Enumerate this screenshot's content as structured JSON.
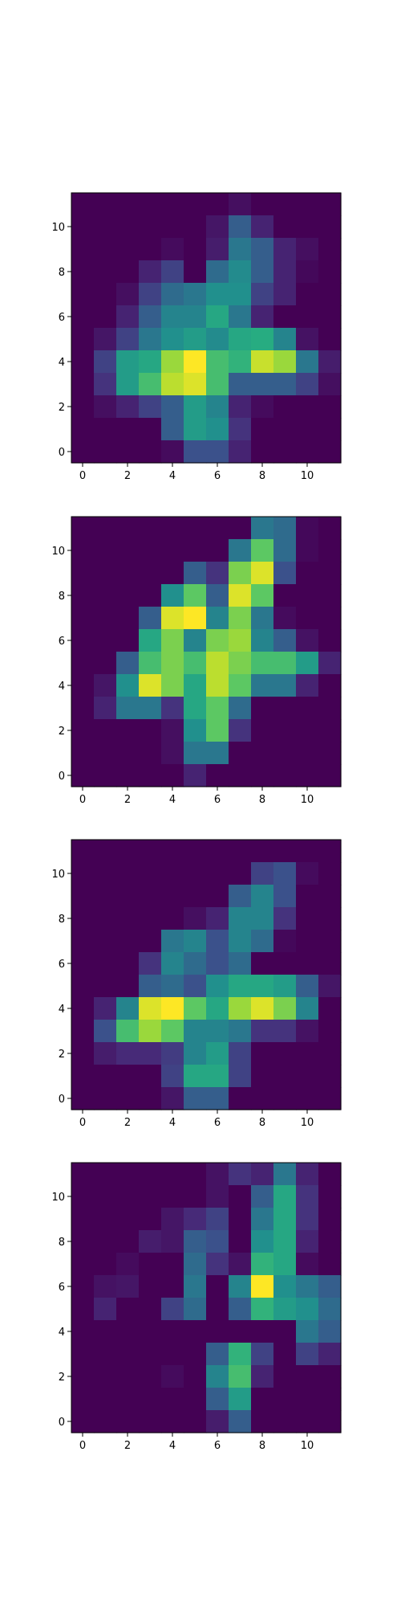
{
  "chart_data": [
    {
      "type": "heatmap",
      "colormap": "viridis",
      "vmin": 0,
      "vmax": 1,
      "grid": false,
      "xticks": [
        0,
        2,
        4,
        6,
        8,
        10
      ],
      "yticks": [
        0,
        2,
        4,
        6,
        8,
        10
      ],
      "xticklabels": [
        "0",
        "2",
        "4",
        "6",
        "8",
        "10"
      ],
      "yticklabels": [
        "0",
        "2",
        "4",
        "6",
        "8",
        "10"
      ],
      "xlim": [
        -0.5,
        11.5
      ],
      "ylim": [
        11.5,
        -0.5
      ],
      "values": [
        [
          0,
          0,
          0,
          0,
          0,
          0,
          0,
          0.04,
          0,
          0,
          0,
          0
        ],
        [
          0,
          0,
          0,
          0,
          0,
          0,
          0.06,
          0.3,
          0.1,
          0,
          0,
          0
        ],
        [
          0,
          0,
          0,
          0,
          0.03,
          0,
          0.08,
          0.4,
          0.3,
          0.1,
          0.04,
          0
        ],
        [
          0,
          0,
          0,
          0.1,
          0.2,
          0,
          0.35,
          0.48,
          0.3,
          0.1,
          0.02,
          0
        ],
        [
          0,
          0,
          0.04,
          0.2,
          0.35,
          0.4,
          0.5,
          0.5,
          0.2,
          0.1,
          0,
          0
        ],
        [
          0,
          0,
          0.1,
          0.3,
          0.45,
          0.45,
          0.6,
          0.4,
          0.1,
          0,
          0,
          0
        ],
        [
          0,
          0.06,
          0.2,
          0.4,
          0.5,
          0.55,
          0.48,
          0.6,
          0.62,
          0.45,
          0.05,
          0
        ],
        [
          0,
          0.2,
          0.55,
          0.6,
          0.85,
          1.0,
          0.7,
          0.65,
          0.92,
          0.85,
          0.4,
          0.08
        ],
        [
          0,
          0.15,
          0.55,
          0.7,
          0.9,
          0.95,
          0.7,
          0.3,
          0.3,
          0.3,
          0.2,
          0.04
        ],
        [
          0,
          0.04,
          0.1,
          0.2,
          0.3,
          0.55,
          0.45,
          0.1,
          0.03,
          0,
          0,
          0
        ],
        [
          0,
          0,
          0,
          0,
          0.3,
          0.55,
          0.5,
          0.15,
          0,
          0,
          0,
          0
        ],
        [
          0,
          0,
          0,
          0,
          0.03,
          0.25,
          0.25,
          0.1,
          0,
          0,
          0,
          0
        ]
      ]
    },
    {
      "type": "heatmap",
      "colormap": "viridis",
      "vmin": 0,
      "vmax": 1,
      "grid": false,
      "xticks": [
        0,
        2,
        4,
        6,
        8,
        10
      ],
      "yticks": [
        0,
        2,
        4,
        6,
        8,
        10
      ],
      "xticklabels": [
        "0",
        "2",
        "4",
        "6",
        "8",
        "10"
      ],
      "yticklabels": [
        "0",
        "2",
        "4",
        "6",
        "8",
        "10"
      ],
      "xlim": [
        -0.5,
        11.5
      ],
      "ylim": [
        11.5,
        -0.5
      ],
      "values": [
        [
          0,
          0,
          0,
          0,
          0,
          0,
          0,
          0,
          0.4,
          0.35,
          0.02,
          0
        ],
        [
          0,
          0,
          0,
          0,
          0,
          0,
          0,
          0.4,
          0.75,
          0.35,
          0.02,
          0
        ],
        [
          0,
          0,
          0,
          0,
          0,
          0.3,
          0.15,
          0.8,
          0.95,
          0.25,
          0,
          0
        ],
        [
          0,
          0,
          0,
          0,
          0.5,
          0.75,
          0.3,
          0.95,
          0.75,
          0,
          0,
          0
        ],
        [
          0,
          0,
          0,
          0.3,
          0.95,
          1.0,
          0.45,
          0.8,
          0.4,
          0.03,
          0,
          0
        ],
        [
          0,
          0,
          0,
          0.6,
          0.8,
          0.45,
          0.8,
          0.85,
          0.45,
          0.3,
          0.05,
          0
        ],
        [
          0,
          0,
          0.3,
          0.7,
          0.8,
          0.7,
          0.9,
          0.8,
          0.7,
          0.7,
          0.55,
          0.1
        ],
        [
          0,
          0.06,
          0.5,
          0.95,
          0.8,
          0.6,
          0.9,
          0.75,
          0.4,
          0.4,
          0.1,
          0
        ],
        [
          0,
          0.1,
          0.4,
          0.4,
          0.15,
          0.6,
          0.75,
          0.35,
          0,
          0,
          0,
          0
        ],
        [
          0,
          0,
          0,
          0,
          0.04,
          0.5,
          0.75,
          0.15,
          0,
          0,
          0,
          0
        ],
        [
          0,
          0,
          0,
          0,
          0.04,
          0.4,
          0.4,
          0,
          0,
          0,
          0,
          0
        ],
        [
          0,
          0,
          0,
          0,
          0,
          0.1,
          0,
          0,
          0,
          0,
          0,
          0
        ]
      ]
    },
    {
      "type": "heatmap",
      "colormap": "viridis",
      "vmin": 0,
      "vmax": 1,
      "grid": false,
      "xticks": [
        0,
        2,
        4,
        6,
        8,
        10
      ],
      "yticks": [
        0,
        2,
        4,
        6,
        8,
        10
      ],
      "xticklabels": [
        "0",
        "2",
        "4",
        "6",
        "8",
        "10"
      ],
      "yticklabels": [
        "0",
        "2",
        "4",
        "6",
        "8",
        "10"
      ],
      "xlim": [
        -0.5,
        11.5
      ],
      "ylim": [
        11.5,
        -0.5
      ],
      "values": [
        [
          0,
          0,
          0,
          0,
          0,
          0,
          0,
          0,
          0,
          0,
          0,
          0
        ],
        [
          0,
          0,
          0,
          0,
          0,
          0,
          0,
          0,
          0.2,
          0.25,
          0.03,
          0
        ],
        [
          0,
          0,
          0,
          0,
          0,
          0,
          0,
          0.3,
          0.45,
          0.25,
          0,
          0
        ],
        [
          0,
          0,
          0,
          0,
          0,
          0.04,
          0.1,
          0.45,
          0.45,
          0.15,
          0,
          0
        ],
        [
          0,
          0,
          0,
          0,
          0.4,
          0.45,
          0.25,
          0.45,
          0.35,
          0.02,
          0,
          0
        ],
        [
          0,
          0,
          0,
          0.15,
          0.45,
          0.35,
          0.25,
          0.35,
          0,
          0,
          0,
          0
        ],
        [
          0,
          0,
          0,
          0.3,
          0.35,
          0.25,
          0.5,
          0.6,
          0.6,
          0.55,
          0.3,
          0.06
        ],
        [
          0,
          0.1,
          0.45,
          0.95,
          1.0,
          0.75,
          0.6,
          0.85,
          0.95,
          0.8,
          0.45,
          0
        ],
        [
          0,
          0.25,
          0.7,
          0.85,
          0.75,
          0.45,
          0.45,
          0.4,
          0.15,
          0.15,
          0.05,
          0
        ],
        [
          0,
          0.08,
          0.12,
          0.12,
          0.18,
          0.45,
          0.55,
          0.2,
          0,
          0,
          0,
          0
        ],
        [
          0,
          0,
          0,
          0,
          0.2,
          0.6,
          0.6,
          0.2,
          0,
          0,
          0,
          0
        ],
        [
          0,
          0,
          0,
          0,
          0.06,
          0.3,
          0.3,
          0,
          0,
          0,
          0,
          0
        ]
      ]
    },
    {
      "type": "heatmap",
      "colormap": "viridis",
      "vmin": 0,
      "vmax": 1,
      "grid": false,
      "xticks": [
        0,
        2,
        4,
        6,
        8,
        10
      ],
      "yticks": [
        0,
        2,
        4,
        6,
        8,
        10
      ],
      "xticklabels": [
        "0",
        "2",
        "4",
        "6",
        "8",
        "10"
      ],
      "yticklabels": [
        "0",
        "2",
        "4",
        "6",
        "8",
        "10"
      ],
      "xlim": [
        -0.5,
        11.5
      ],
      "ylim": [
        11.5,
        -0.5
      ],
      "values": [
        [
          0,
          0,
          0,
          0,
          0,
          0,
          0.05,
          0.15,
          0.1,
          0.4,
          0.1,
          0
        ],
        [
          0,
          0,
          0,
          0,
          0,
          0,
          0.05,
          0,
          0.3,
          0.6,
          0.15,
          0
        ],
        [
          0,
          0,
          0,
          0,
          0.06,
          0.12,
          0.2,
          0,
          0.4,
          0.6,
          0.15,
          0
        ],
        [
          0,
          0,
          0,
          0.08,
          0.06,
          0.3,
          0.25,
          0,
          0.5,
          0.6,
          0.1,
          0
        ],
        [
          0,
          0,
          0.03,
          0,
          0,
          0.35,
          0.15,
          0.05,
          0.65,
          0.6,
          0.03,
          0
        ],
        [
          0,
          0.05,
          0.06,
          0,
          0,
          0.4,
          0,
          0.45,
          1.0,
          0.5,
          0.4,
          0.3
        ],
        [
          0,
          0.1,
          0,
          0,
          0.2,
          0.35,
          0,
          0.3,
          0.65,
          0.55,
          0.5,
          0.35
        ],
        [
          0,
          0,
          0,
          0,
          0,
          0,
          0,
          0,
          0,
          0,
          0.4,
          0.3
        ],
        [
          0,
          0,
          0,
          0,
          0,
          0,
          0.3,
          0.65,
          0.2,
          0,
          0.2,
          0.1
        ],
        [
          0,
          0,
          0,
          0,
          0.03,
          0,
          0.45,
          0.7,
          0.1,
          0,
          0,
          0
        ],
        [
          0,
          0,
          0,
          0,
          0,
          0,
          0.3,
          0.55,
          0,
          0,
          0,
          0
        ],
        [
          0,
          0,
          0,
          0,
          0,
          0,
          0.08,
          0.3,
          0,
          0,
          0,
          0
        ]
      ]
    }
  ]
}
